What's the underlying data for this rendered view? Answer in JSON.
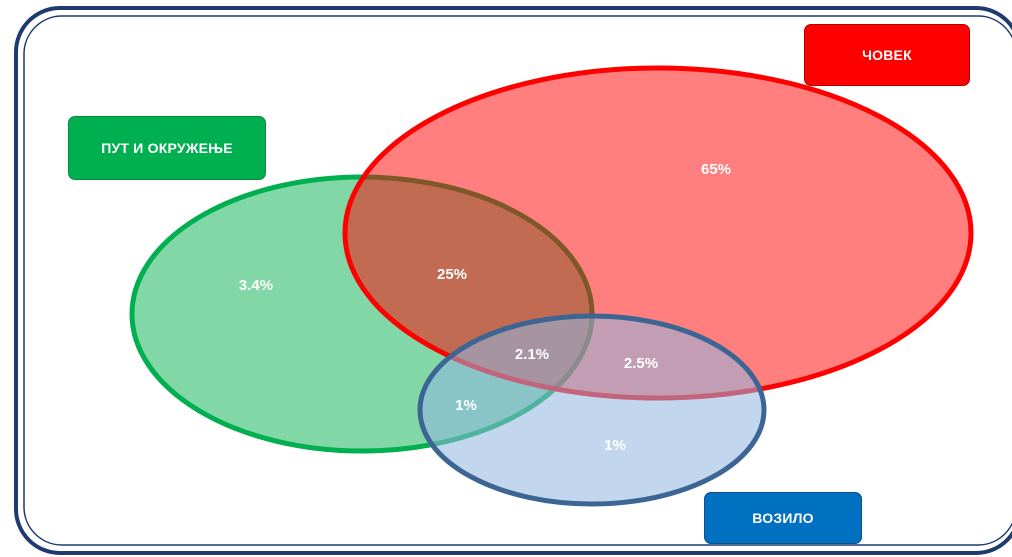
{
  "labels": {
    "road": "ПУТ И ОКРУЖЕЊЕ",
    "human": "ЧОВЕК",
    "vehicle": "ВОЗИЛО"
  },
  "regions": {
    "road_only": "3.4%",
    "human_only": "65%",
    "vehicle_only": "1%",
    "road_human": "25%",
    "road_vehicle": "1%",
    "human_vehicle": "2.5%",
    "all_three": "2.1%"
  },
  "colors": {
    "road_fill": "#2ebd6b",
    "road_stroke": "#00b050",
    "human_fill": "#ff0000",
    "human_stroke": "#ff0000",
    "vehicle_fill": "#8fb6e0",
    "vehicle_stroke": "#3c6594",
    "frame": "#1f3a6e"
  }
}
